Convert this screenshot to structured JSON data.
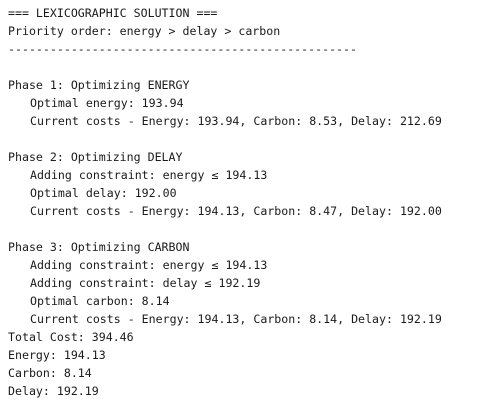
{
  "header": {
    "title": "=== LEXICOGRAPHIC SOLUTION ===",
    "priority": "Priority order: energy > delay > carbon",
    "rule": "--------------------------------------------------"
  },
  "phase1": {
    "title": "Phase 1: Optimizing ENERGY",
    "optimal": "Optimal energy: 193.94",
    "costs": "Current costs - Energy: 193.94, Carbon: 8.53, Delay: 212.69"
  },
  "phase2": {
    "title": "Phase 2: Optimizing DELAY",
    "constraint1": "Adding constraint: energy ≤ 194.13",
    "optimal": "Optimal delay: 192.00",
    "costs": "Current costs - Energy: 194.13, Carbon: 8.47, Delay: 192.00"
  },
  "phase3": {
    "title": "Phase 3: Optimizing CARBON",
    "constraint1": "Adding constraint: energy ≤ 194.13",
    "constraint2": "Adding constraint: delay ≤ 192.19",
    "optimal": "Optimal carbon: 8.14",
    "costs": "Current costs - Energy: 194.13, Carbon: 8.14, Delay: 192.19"
  },
  "summary": {
    "total": "Total Cost: 394.46",
    "energy": "Energy: 194.13",
    "carbon": "Carbon: 8.14",
    "delay": "Delay: 192.19"
  }
}
